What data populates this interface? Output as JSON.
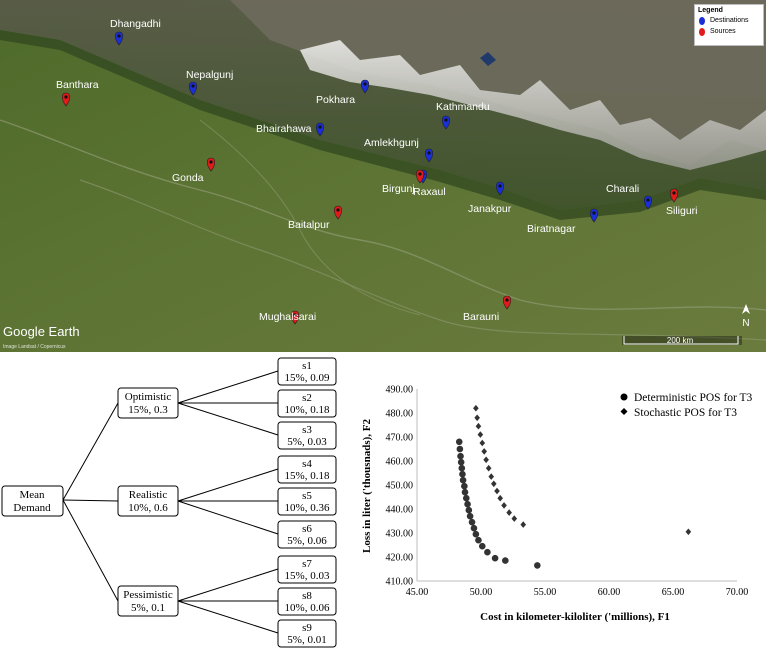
{
  "map": {
    "legend": {
      "title": "Legend",
      "destinations_label": "Destinations",
      "sources_label": "Sources"
    },
    "destinations": [
      {
        "name": "Dhangadhi"
      },
      {
        "name": "Nepalgunj"
      },
      {
        "name": "Pokhara"
      },
      {
        "name": "Kathmandu"
      },
      {
        "name": "Bhairahawa"
      },
      {
        "name": "Amlekhgunj"
      },
      {
        "name": "Birgunj"
      },
      {
        "name": "Janakpur"
      },
      {
        "name": "Biratnagar"
      },
      {
        "name": "Charali"
      }
    ],
    "sources": [
      {
        "name": "Banthara"
      },
      {
        "name": "Gonda"
      },
      {
        "name": "Raxaul"
      },
      {
        "name": "Baitalpur"
      },
      {
        "name": "Siliguri"
      },
      {
        "name": "Barauni"
      },
      {
        "name": "Mughalsarai"
      }
    ],
    "attribution": "Google Earth",
    "small_attribution": "Image Landsat / Copernicus",
    "scale_label": "200 km",
    "north_label": "N",
    "colors": {
      "destination": "#1a2fd6",
      "source": "#e01b1b"
    }
  },
  "tree": {
    "root": {
      "line1": "Mean",
      "line2": "Demand"
    },
    "branches": [
      {
        "line1": "Optimistic",
        "line2": "15%, 0.3"
      },
      {
        "line1": "Realistic",
        "line2": "10%, 0.6"
      },
      {
        "line1": "Pessimistic",
        "line2": "5%, 0.1"
      }
    ],
    "scenarios": [
      {
        "line1": "s1",
        "line2": "15%, 0.09"
      },
      {
        "line1": "s2",
        "line2": "10%, 0.18"
      },
      {
        "line1": "s3",
        "line2": "5%, 0.03"
      },
      {
        "line1": "s4",
        "line2": "15%, 0.18"
      },
      {
        "line1": "s5",
        "line2": "10%, 0.36"
      },
      {
        "line1": "s6",
        "line2": "5%, 0.06"
      },
      {
        "line1": "s7",
        "line2": "15%, 0.03"
      },
      {
        "line1": "s8",
        "line2": "10%, 0.06"
      },
      {
        "line1": "s9",
        "line2": "5%, 0.01"
      }
    ]
  },
  "chart_data": {
    "type": "scatter",
    "xlabel": "Cost in kilometer-kiloliter ('millions), F1",
    "ylabel": "Loss in liter ('thousnads), F2",
    "xlim": [
      45,
      70
    ],
    "ylim": [
      410,
      490
    ],
    "xticks": [
      "45.00",
      "50.00",
      "55.00",
      "60.00",
      "65.00",
      "70.00"
    ],
    "yticks": [
      "410.00",
      "420.00",
      "430.00",
      "440.00",
      "450.00",
      "460.00",
      "470.00",
      "480.00",
      "490.00"
    ],
    "legend_position": "top-right",
    "series": [
      {
        "name": "Deterministic POS for T3",
        "marker": "circle",
        "color": "#333333",
        "points": [
          [
            48.3,
            468.0
          ],
          [
            48.35,
            465.0
          ],
          [
            48.4,
            462.0
          ],
          [
            48.45,
            459.5
          ],
          [
            48.5,
            457.0
          ],
          [
            48.55,
            454.5
          ],
          [
            48.6,
            452.0
          ],
          [
            48.7,
            449.5
          ],
          [
            48.75,
            447.0
          ],
          [
            48.85,
            444.5
          ],
          [
            48.95,
            442.0
          ],
          [
            49.05,
            439.5
          ],
          [
            49.15,
            437.0
          ],
          [
            49.3,
            434.5
          ],
          [
            49.45,
            432.0
          ],
          [
            49.6,
            429.5
          ],
          [
            49.8,
            427.0
          ],
          [
            50.1,
            424.5
          ],
          [
            50.5,
            422.0
          ],
          [
            51.1,
            419.5
          ],
          [
            51.9,
            418.5
          ],
          [
            54.4,
            416.5
          ]
        ]
      },
      {
        "name": "Stochastic POS for T3",
        "marker": "diamond",
        "color": "#333333",
        "points": [
          [
            49.6,
            482.0
          ],
          [
            49.7,
            478.0
          ],
          [
            49.8,
            474.5
          ],
          [
            49.95,
            471.0
          ],
          [
            50.1,
            467.5
          ],
          [
            50.25,
            464.0
          ],
          [
            50.4,
            460.5
          ],
          [
            50.6,
            457.0
          ],
          [
            50.8,
            453.5
          ],
          [
            51.0,
            450.5
          ],
          [
            51.25,
            447.5
          ],
          [
            51.5,
            444.5
          ],
          [
            51.8,
            441.5
          ],
          [
            52.2,
            438.5
          ],
          [
            52.6,
            436.0
          ],
          [
            53.3,
            433.5
          ],
          [
            66.2,
            430.5
          ]
        ]
      }
    ]
  }
}
